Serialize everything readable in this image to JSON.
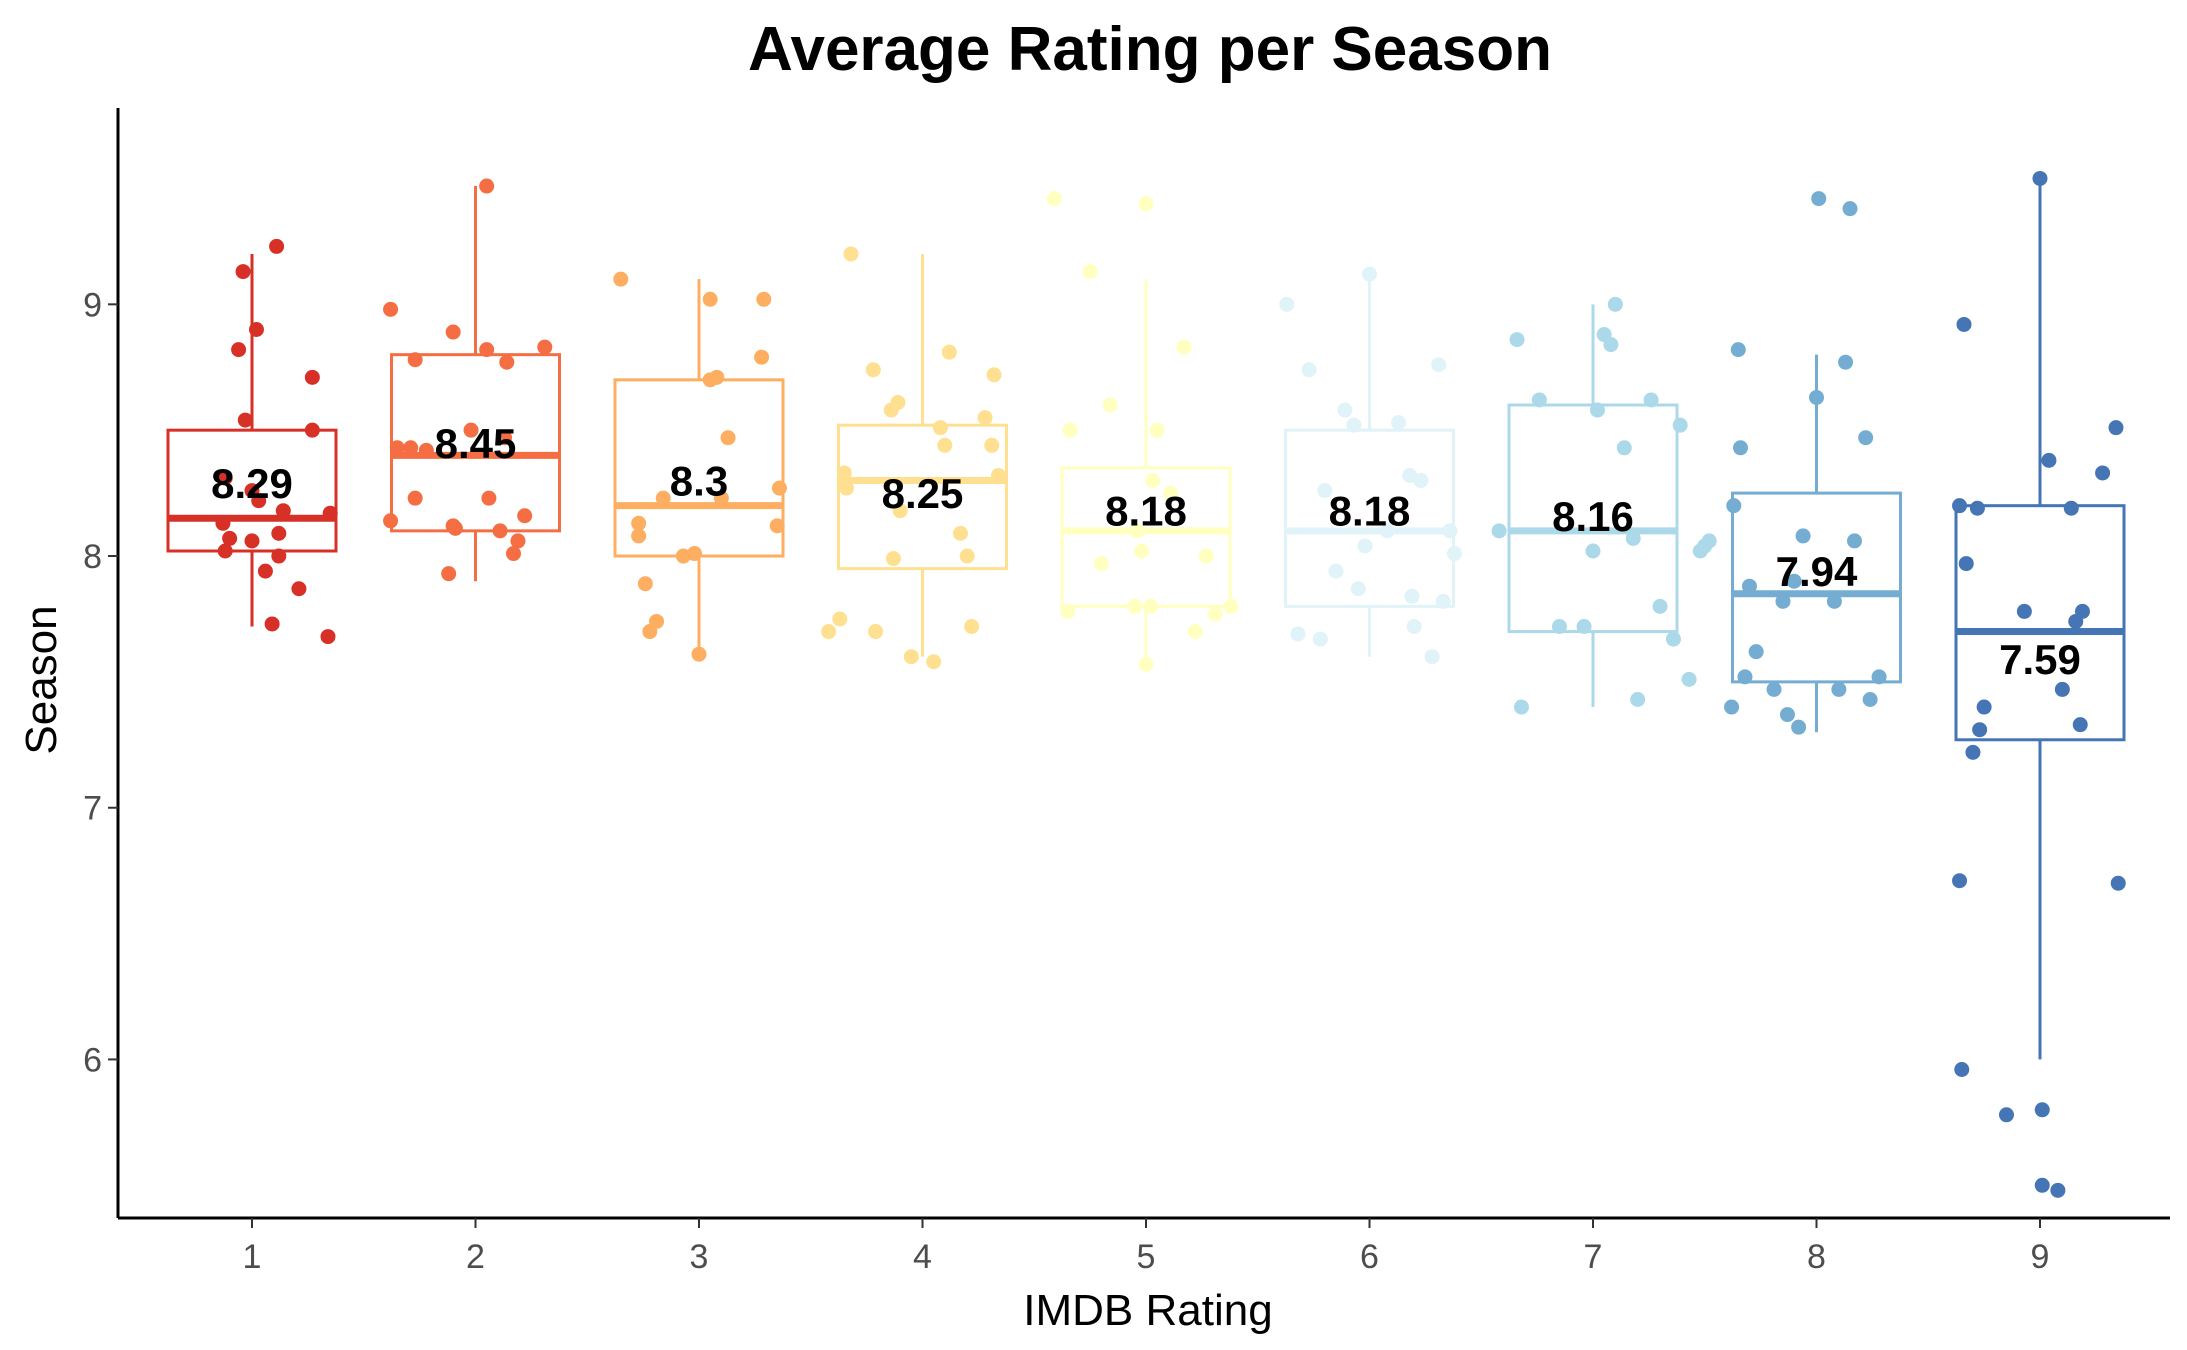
{
  "chart_data": {
    "type": "box",
    "title": "Average Rating per Season",
    "xlabel": "IMDB Rating",
    "ylabel": "Season",
    "categories": [
      "1",
      "2",
      "3",
      "4",
      "5",
      "6",
      "7",
      "8",
      "9"
    ],
    "ylim": [
      5.37,
      9.78
    ],
    "yticks": [
      "6",
      "7",
      "8",
      "9"
    ],
    "ytick_values": [
      6,
      7,
      8,
      9
    ],
    "grid": false,
    "legend": "none",
    "series": [
      {
        "category": "1",
        "color": "#d73027",
        "label": "8.29",
        "box": {
          "q1": 8.02,
          "median": 8.15,
          "q3": 8.5,
          "whisker_low": 7.72,
          "whisker_high": 9.2
        },
        "points": [
          [
            0.88,
            8.31
          ],
          [
            0.9,
            8.07
          ],
          [
            0.87,
            8.13
          ],
          [
            0.88,
            8.02
          ],
          [
            0.94,
            8.82
          ],
          [
            0.96,
            9.13
          ],
          [
            0.97,
            8.54
          ],
          [
            1.02,
            8.9
          ],
          [
            1.0,
            8.26
          ],
          [
            1.06,
            7.94
          ],
          [
            1.03,
            8.22
          ],
          [
            1.09,
            7.73
          ],
          [
            1.0,
            8.06
          ],
          [
            1.12,
            8.09
          ],
          [
            1.11,
            9.23
          ],
          [
            1.12,
            8.0
          ],
          [
            1.14,
            8.18
          ],
          [
            1.21,
            7.87
          ],
          [
            1.27,
            8.71
          ],
          [
            1.27,
            8.5
          ],
          [
            1.34,
            7.68
          ],
          [
            1.35,
            8.17
          ]
        ]
      },
      {
        "category": "2",
        "color": "#f46d43",
        "label": "8.45",
        "box": {
          "q1": 8.1,
          "median": 8.4,
          "q3": 8.8,
          "whisker_low": 7.9,
          "whisker_high": 9.47
        },
        "points": [
          [
            1.62,
            8.98
          ],
          [
            1.62,
            8.14
          ],
          [
            1.65,
            8.43
          ],
          [
            1.71,
            8.43
          ],
          [
            1.73,
            8.78
          ],
          [
            1.73,
            8.23
          ],
          [
            1.78,
            8.42
          ],
          [
            1.9,
            8.89
          ],
          [
            1.91,
            8.11
          ],
          [
            1.9,
            8.12
          ],
          [
            1.88,
            7.93
          ],
          [
            1.98,
            8.5
          ],
          [
            2.05,
            9.47
          ],
          [
            2.05,
            8.82
          ],
          [
            2.06,
            8.23
          ],
          [
            2.11,
            8.1
          ],
          [
            2.13,
            8.47
          ],
          [
            2.14,
            8.77
          ],
          [
            2.17,
            8.01
          ],
          [
            2.19,
            8.06
          ],
          [
            2.22,
            8.16
          ],
          [
            2.31,
            8.83
          ]
        ]
      },
      {
        "category": "3",
        "color": "#fdae61",
        "label": "8.3",
        "box": {
          "q1": 8.0,
          "median": 8.2,
          "q3": 8.7,
          "whisker_low": 7.6,
          "whisker_high": 9.1
        },
        "points": [
          [
            2.65,
            9.1
          ],
          [
            2.73,
            8.13
          ],
          [
            2.73,
            8.08
          ],
          [
            2.76,
            7.89
          ],
          [
            2.78,
            7.7
          ],
          [
            2.81,
            7.74
          ],
          [
            2.84,
            8.23
          ],
          [
            2.93,
            8.0
          ],
          [
            2.98,
            8.01
          ],
          [
            3.0,
            7.61
          ],
          [
            3.05,
            9.02
          ],
          [
            3.05,
            8.7
          ],
          [
            3.1,
            8.23
          ],
          [
            3.08,
            8.71
          ],
          [
            3.13,
            8.47
          ],
          [
            3.29,
            9.02
          ],
          [
            3.28,
            8.79
          ],
          [
            3.35,
            8.12
          ],
          [
            3.36,
            8.27
          ]
        ]
      },
      {
        "category": "4",
        "color": "#fee090",
        "label": "8.25",
        "box": {
          "q1": 7.95,
          "median": 8.3,
          "q3": 8.52,
          "whisker_low": 7.6,
          "whisker_high": 9.2
        },
        "points": [
          [
            3.58,
            7.7
          ],
          [
            3.63,
            7.75
          ],
          [
            3.65,
            8.33
          ],
          [
            3.66,
            8.27
          ],
          [
            3.68,
            9.2
          ],
          [
            3.78,
            8.74
          ],
          [
            3.79,
            7.7
          ],
          [
            3.86,
            8.58
          ],
          [
            3.89,
            8.61
          ],
          [
            3.9,
            8.18
          ],
          [
            3.87,
            7.99
          ],
          [
            3.95,
            7.6
          ],
          [
            4.05,
            7.58
          ],
          [
            4.08,
            8.51
          ],
          [
            4.1,
            8.44
          ],
          [
            4.12,
            8.81
          ],
          [
            4.17,
            8.09
          ],
          [
            4.2,
            8.0
          ],
          [
            4.22,
            7.72
          ],
          [
            4.28,
            8.55
          ],
          [
            4.32,
            8.72
          ],
          [
            4.31,
            8.44
          ],
          [
            4.34,
            8.32
          ]
        ]
      },
      {
        "category": "5",
        "color": "#ffffbf",
        "label": "8.18",
        "box": {
          "q1": 7.8,
          "median": 8.1,
          "q3": 8.35,
          "whisker_low": 7.6,
          "whisker_high": 9.1
        },
        "points": [
          [
            4.59,
            9.42
          ],
          [
            4.66,
            8.5
          ],
          [
            4.65,
            7.78
          ],
          [
            4.75,
            9.13
          ],
          [
            4.8,
            7.97
          ],
          [
            4.84,
            8.6
          ],
          [
            4.95,
            7.8
          ],
          [
            4.96,
            8.1
          ],
          [
            4.98,
            8.02
          ],
          [
            5.0,
            7.57
          ],
          [
            5.0,
            9.4
          ],
          [
            5.02,
            7.8
          ],
          [
            5.03,
            8.3
          ],
          [
            5.05,
            8.5
          ],
          [
            5.11,
            8.25
          ],
          [
            5.17,
            8.83
          ],
          [
            5.22,
            7.7
          ],
          [
            5.27,
            8.0
          ],
          [
            5.31,
            7.77
          ],
          [
            5.38,
            7.8
          ]
        ]
      },
      {
        "category": "6",
        "color": "#e0f3f8",
        "label": "8.18",
        "box": {
          "q1": 7.8,
          "median": 8.1,
          "q3": 8.5,
          "whisker_low": 7.6,
          "whisker_high": 9.1
        },
        "points": [
          [
            5.63,
            9.0
          ],
          [
            5.68,
            7.69
          ],
          [
            5.73,
            8.74
          ],
          [
            5.78,
            7.67
          ],
          [
            5.8,
            8.26
          ],
          [
            5.85,
            7.94
          ],
          [
            5.89,
            8.58
          ],
          [
            5.93,
            8.52
          ],
          [
            5.95,
            7.87
          ],
          [
            5.98,
            8.04
          ],
          [
            6.0,
            9.12
          ],
          [
            6.08,
            8.1
          ],
          [
            6.13,
            8.53
          ],
          [
            6.18,
            8.32
          ],
          [
            6.19,
            7.84
          ],
          [
            6.2,
            7.72
          ],
          [
            6.23,
            8.3
          ],
          [
            6.28,
            7.6
          ],
          [
            6.31,
            8.76
          ],
          [
            6.33,
            7.82
          ],
          [
            6.36,
            8.1
          ],
          [
            6.38,
            8.01
          ]
        ]
      },
      {
        "category": "7",
        "color": "#abd9e9",
        "label": "8.16",
        "box": {
          "q1": 7.7,
          "median": 8.1,
          "q3": 8.6,
          "whisker_low": 7.4,
          "whisker_high": 9.0
        },
        "points": [
          [
            6.58,
            8.1
          ],
          [
            6.66,
            8.86
          ],
          [
            6.68,
            7.4
          ],
          [
            6.76,
            8.62
          ],
          [
            6.85,
            7.72
          ],
          [
            6.96,
            7.72
          ],
          [
            7.0,
            8.02
          ],
          [
            7.02,
            8.58
          ],
          [
            7.05,
            8.88
          ],
          [
            7.08,
            8.84
          ],
          [
            7.1,
            9.0
          ],
          [
            7.14,
            8.43
          ],
          [
            7.18,
            8.07
          ],
          [
            7.2,
            7.43
          ],
          [
            7.26,
            8.62
          ],
          [
            7.3,
            7.8
          ],
          [
            7.36,
            7.67
          ],
          [
            7.39,
            8.52
          ],
          [
            7.43,
            7.51
          ],
          [
            7.48,
            8.02
          ],
          [
            7.5,
            8.04
          ],
          [
            7.52,
            8.06
          ]
        ]
      },
      {
        "category": "8",
        "color": "#74add1",
        "label": "7.94",
        "box": {
          "q1": 7.5,
          "median": 7.85,
          "q3": 8.25,
          "whisker_low": 7.3,
          "whisker_high": 8.8
        },
        "points": [
          [
            7.63,
            8.2
          ],
          [
            7.62,
            7.4
          ],
          [
            7.65,
            8.82
          ],
          [
            7.66,
            8.43
          ],
          [
            7.68,
            7.52
          ],
          [
            7.7,
            7.88
          ],
          [
            7.73,
            7.62
          ],
          [
            7.81,
            7.47
          ],
          [
            7.85,
            7.82
          ],
          [
            7.87,
            7.37
          ],
          [
            7.9,
            7.9
          ],
          [
            7.92,
            7.32
          ],
          [
            7.94,
            8.08
          ],
          [
            8.0,
            8.63
          ],
          [
            8.01,
            9.42
          ],
          [
            8.08,
            7.82
          ],
          [
            8.1,
            7.47
          ],
          [
            8.13,
            8.77
          ],
          [
            8.15,
            9.38
          ],
          [
            8.17,
            8.06
          ],
          [
            8.22,
            8.47
          ],
          [
            8.24,
            7.43
          ],
          [
            8.28,
            7.52
          ]
        ]
      },
      {
        "category": "9",
        "color": "#4575b4",
        "label": "7.59",
        "box": {
          "q1": 7.27,
          "median": 7.7,
          "q3": 8.2,
          "whisker_low": 6.0,
          "whisker_high": 9.5
        },
        "points": [
          [
            8.64,
            8.2
          ],
          [
            8.64,
            6.71
          ],
          [
            8.65,
            5.96
          ],
          [
            8.66,
            8.92
          ],
          [
            8.67,
            7.97
          ],
          [
            8.7,
            7.22
          ],
          [
            8.72,
            8.19
          ],
          [
            8.73,
            7.31
          ],
          [
            8.75,
            7.4
          ],
          [
            8.85,
            5.78
          ],
          [
            8.93,
            7.78
          ],
          [
            9.0,
            9.5
          ],
          [
            9.01,
            5.8
          ],
          [
            9.01,
            5.5
          ],
          [
            9.08,
            5.48
          ],
          [
            9.04,
            8.38
          ],
          [
            9.1,
            7.47
          ],
          [
            9.14,
            8.19
          ],
          [
            9.16,
            7.74
          ],
          [
            9.18,
            7.33
          ],
          [
            9.19,
            7.78
          ],
          [
            9.28,
            8.33
          ],
          [
            9.34,
            8.51
          ],
          [
            9.35,
            6.7
          ]
        ]
      }
    ]
  }
}
